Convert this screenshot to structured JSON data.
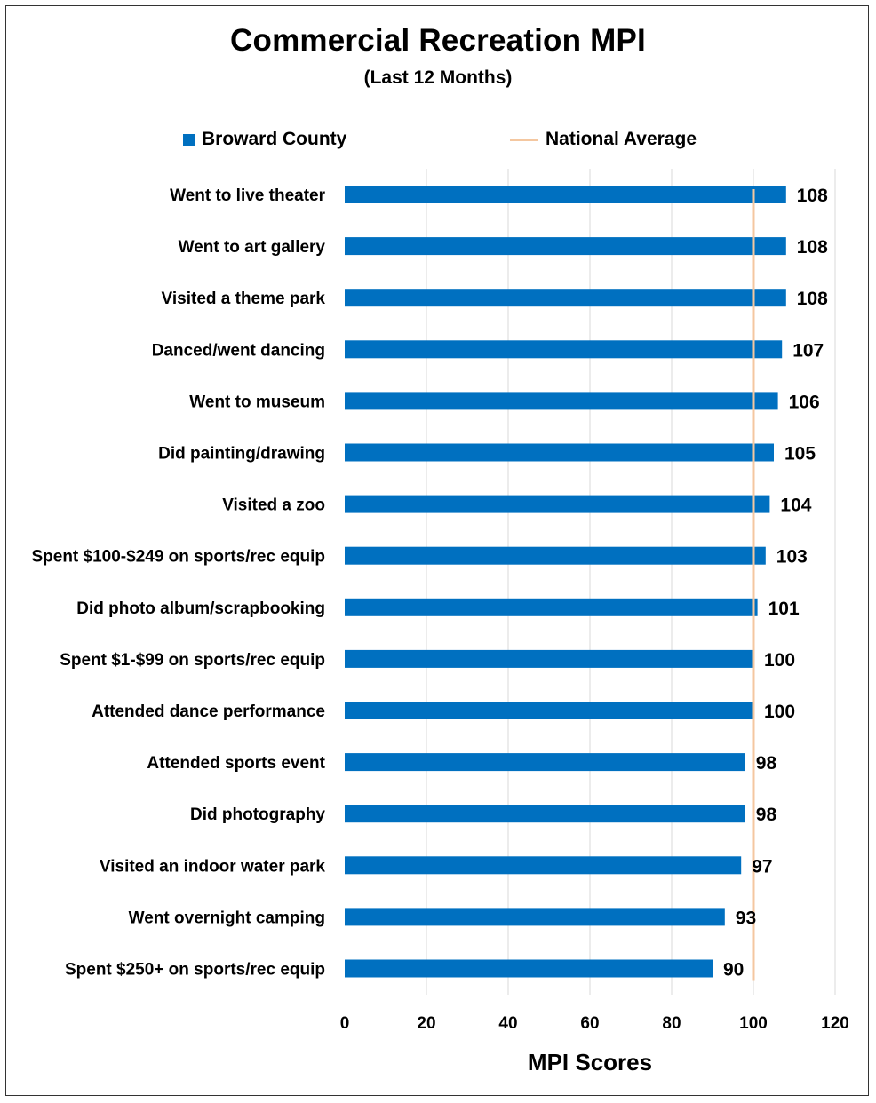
{
  "chart_data": {
    "type": "bar",
    "orientation": "horizontal",
    "title": "Commercial Recreation MPI",
    "subtitle": "(Last 12 Months)",
    "xlabel": "MPI Scores",
    "ylabel": "",
    "xlim": [
      0,
      120
    ],
    "xticks": [
      "0",
      "20",
      "40",
      "60",
      "80",
      "100",
      "120"
    ],
    "grid": true,
    "legend_position": "top",
    "series": [
      {
        "name": "Broward County",
        "color": "#0070C0",
        "values": [
          108,
          108,
          108,
          107,
          106,
          105,
          104,
          103,
          101,
          100,
          100,
          98,
          98,
          97,
          93,
          90
        ],
        "labels": [
          "108",
          "108",
          "108",
          "107",
          "106",
          "105",
          "104",
          "103",
          "101",
          "100",
          "100",
          "98",
          "98",
          "97",
          "93",
          "90"
        ]
      }
    ],
    "reference_line": {
      "name": "National Average",
      "value": 100,
      "color": "#F4C7A0"
    },
    "categories": [
      "Went to live theater",
      "Went to art gallery",
      "Visited a theme park",
      "Danced/went dancing",
      "Went to museum",
      "Did painting/drawing",
      "Visited a zoo",
      "Spent $100-$249 on sports/rec equip",
      "Did photo album/scrapbooking",
      "Spent  $1-$99 on sports/rec equip",
      "Attended dance performance",
      "Attended sports event",
      "Did photography",
      "Visited an indoor water park",
      "Went overnight camping",
      "Spent  $250+ on sports/rec equip"
    ]
  }
}
